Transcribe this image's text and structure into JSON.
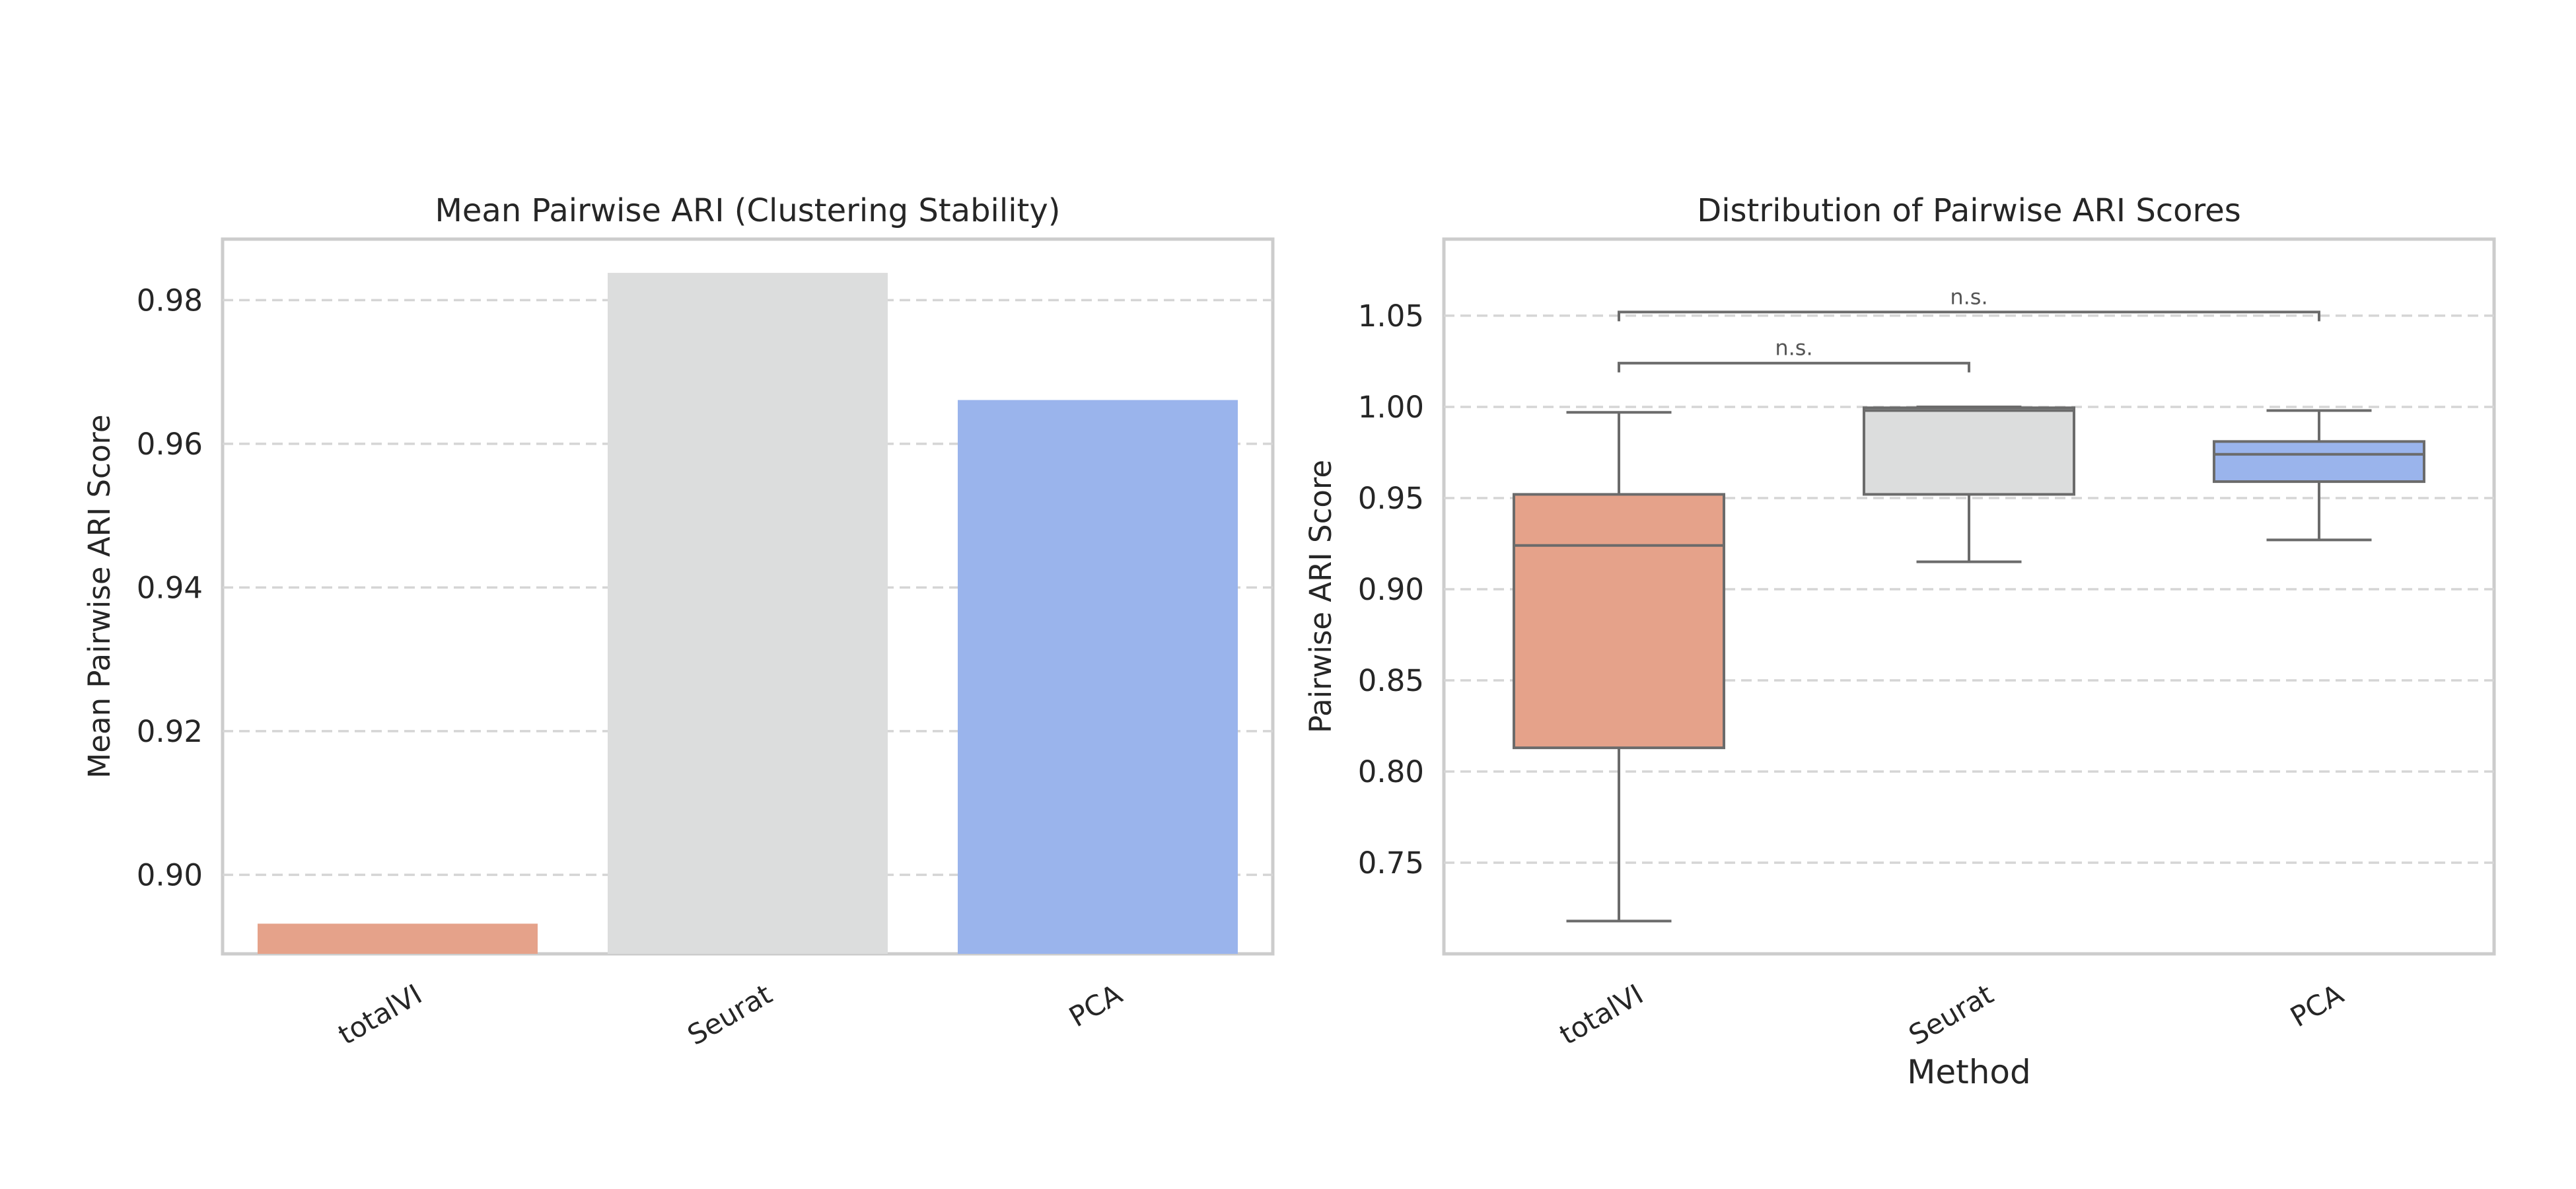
{
  "chart_data": [
    {
      "type": "bar",
      "title": "Mean Pairwise ARI (Clustering Stability)",
      "xlabel": "",
      "ylabel": "Mean Pairwise ARI Score",
      "categories": [
        "totalVI",
        "Seurat",
        "PCA"
      ],
      "values": [
        0.8932,
        0.9838,
        0.9661
      ],
      "colors": [
        "#e5a28a",
        "#dcdddd",
        "#9ab4ec"
      ],
      "ylim": [
        0.889,
        0.9885
      ],
      "yticks": [
        0.9,
        0.92,
        0.94,
        0.96,
        0.98
      ],
      "ytick_labels": [
        "0.90",
        "0.92",
        "0.94",
        "0.96",
        "0.98"
      ],
      "grid": "y, dashed"
    },
    {
      "type": "box",
      "title": "Distribution of Pairwise ARI Scores",
      "xlabel": "Method",
      "ylabel": "Pairwise ARI Score",
      "categories": [
        "totalVI",
        "Seurat",
        "PCA"
      ],
      "boxes": [
        {
          "name": "totalVI",
          "whisker_low": 0.718,
          "q1": 0.813,
          "median": 0.924,
          "q3": 0.952,
          "whisker_high": 0.997
        },
        {
          "name": "Seurat",
          "whisker_low": 0.915,
          "q1": 0.952,
          "median": 0.998,
          "q3": 0.9995,
          "whisker_high": 1.0
        },
        {
          "name": "PCA",
          "whisker_low": 0.927,
          "q1": 0.959,
          "median": 0.974,
          "q3": 0.981,
          "whisker_high": 0.998
        }
      ],
      "colors": [
        "#e5a28a",
        "#dcdddd",
        "#9ab4ec"
      ],
      "ylim": [
        0.7,
        1.092
      ],
      "yticks": [
        0.75,
        0.8,
        0.85,
        0.9,
        0.95,
        1.0,
        1.05
      ],
      "ytick_labels": [
        "0.75",
        "0.80",
        "0.85",
        "0.90",
        "0.95",
        "1.00",
        "1.05"
      ],
      "grid": "y, dashed",
      "annotations": [
        {
          "from": "totalVI",
          "to": "Seurat",
          "y": 1.024,
          "label": "n.s."
        },
        {
          "from": "totalVI",
          "to": "PCA",
          "y": 1.052,
          "label": "n.s."
        }
      ]
    }
  ]
}
